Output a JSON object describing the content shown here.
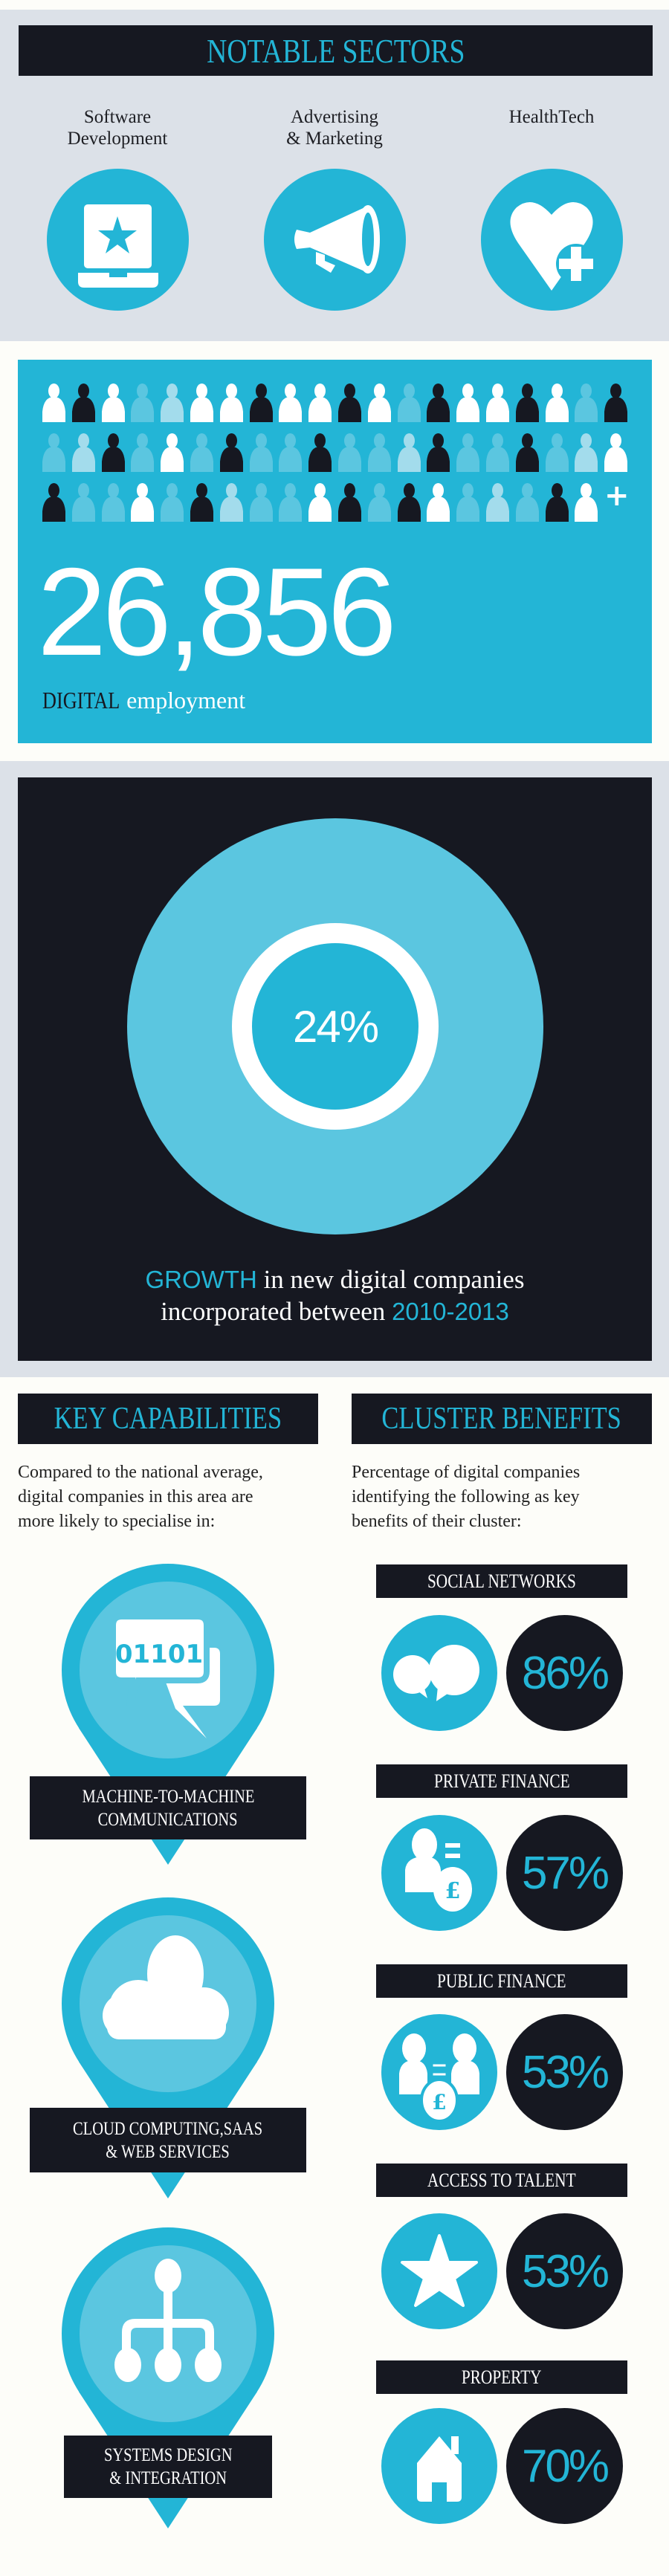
{
  "colors": {
    "brand_blue": "#23b5d6",
    "medium_blue": "#5bc6e0",
    "light_blue": "#a3dcec",
    "dark": "#161821",
    "panel_gray": "#dce1e8",
    "white": "#ffffff"
  },
  "sectors": {
    "title": "NOTABLE SECTORS",
    "items": [
      {
        "line1": "Software",
        "line2": "Development",
        "icon": "laptop-star-icon"
      },
      {
        "line1": "Advertising",
        "line2": "& Marketing",
        "icon": "megaphone-icon"
      },
      {
        "line1": "",
        "line2": "HealthTech",
        "icon": "heart-plus-icon"
      }
    ]
  },
  "employment": {
    "value": "26,856",
    "label_strong": "DIGITAL",
    "label_rest": "employment",
    "plus": "+",
    "people_legend": {
      "W": "#ffffff",
      "D": "#161821",
      "M": "#5bc6e0",
      "L": "#a3dcec"
    },
    "people_rows": [
      "WDWMLWWDWWDWMDWWDWMD",
      "MLDMWMDMMDMMLDMMDMLW",
      "DMMWMDLMMWDMDWMLMDW"
    ]
  },
  "growth": {
    "value": "24%",
    "line1_highlight": "GROWTH",
    "line1_rest": " in new digital companies",
    "line2_rest": "incorporated between ",
    "line2_highlight": "2010-2013"
  },
  "capabilities": {
    "title": "KEY CAPABILITIES",
    "intro": [
      "Compared to the national average,",
      "digital companies in this area are",
      "more likely to specialise in:"
    ],
    "items": [
      {
        "line1": "MACHINE-TO-MACHINE",
        "line2": "COMMUNICATIONS",
        "icon": "binary-chat-icon",
        "icon_text": "01101"
      },
      {
        "line1": "CLOUD COMPUTING,SAAS",
        "line2": "& WEB SERVICES",
        "icon": "cloud-icon"
      },
      {
        "line1": "SYSTEMS DESIGN",
        "line2": "& INTEGRATION",
        "icon": "hierarchy-icon"
      }
    ]
  },
  "benefits": {
    "title": "CLUSTER BENEFITS",
    "intro": [
      "Percentage of digital companies",
      "identifying the following as key",
      "benefits of their cluster:"
    ],
    "items": [
      {
        "label": "SOCIAL NETWORKS",
        "value": "86%",
        "icon": "speech-bubbles-icon"
      },
      {
        "label": "PRIVATE FINANCE",
        "value": "57%",
        "icon": "person-money-bag-icon"
      },
      {
        "label": "PUBLIC FINANCE",
        "value": "53%",
        "icon": "people-money-bag-icon"
      },
      {
        "label": "ACCESS TO TALENT",
        "value": "53%",
        "icon": "star-icon"
      },
      {
        "label": "PROPERTY",
        "value": "70%",
        "icon": "house-icon"
      }
    ]
  }
}
